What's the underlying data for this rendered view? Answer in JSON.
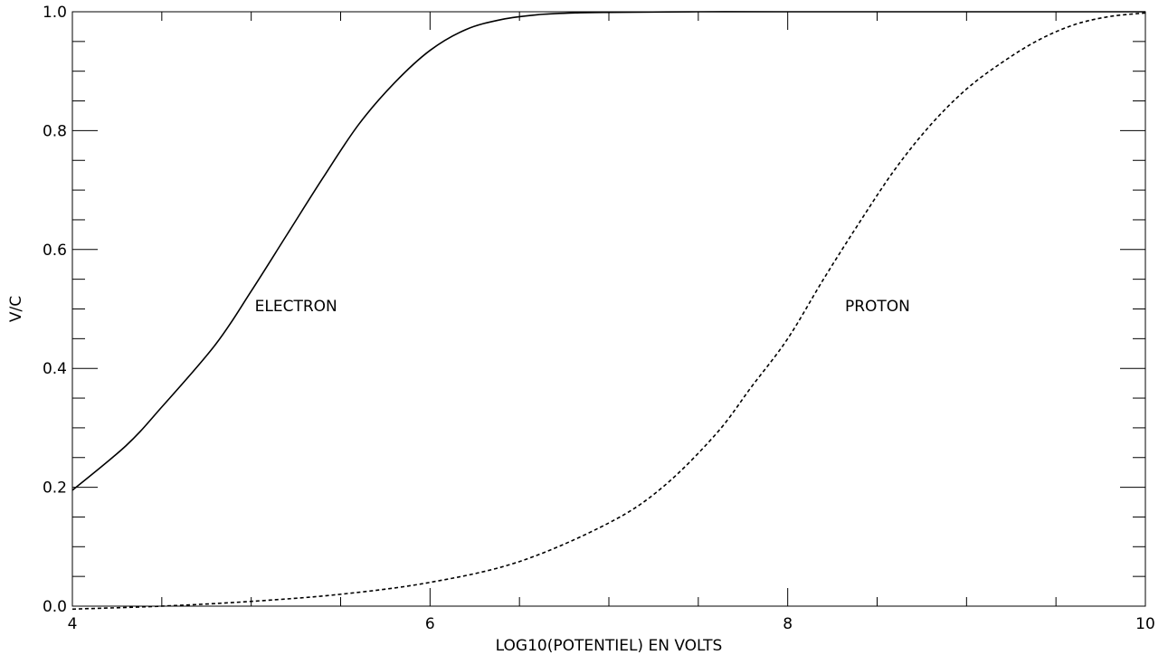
{
  "chart_data": {
    "type": "line",
    "title": "",
    "xlabel": "LOG10(POTENTIEL) EN VOLTS",
    "ylabel": "V/C",
    "xlim": [
      4,
      10
    ],
    "ylim": [
      0,
      1.0
    ],
    "x_major_ticks": [
      4,
      6,
      8,
      10
    ],
    "x_tick_labels": [
      "4",
      "6",
      "8",
      "10"
    ],
    "x_minor_step": 0.5,
    "y_major_ticks": [
      0,
      0.2,
      0.4,
      0.6,
      0.8,
      1.0
    ],
    "y_tick_labels": [
      "0.0",
      "0.2",
      "0.4",
      "0.6",
      "0.8",
      "1.0"
    ],
    "y_minor_step": 0.05,
    "grid": false,
    "line_color": "#000000",
    "series": [
      {
        "name": "ELECTRON",
        "line_style": "solid",
        "x": [
          4.0,
          4.3,
          4.5,
          4.8,
          5.0,
          5.2,
          5.4,
          5.6,
          5.8,
          6.0,
          6.2,
          6.4,
          6.6,
          6.8,
          7.0,
          7.5,
          8.0,
          9.0,
          10.0
        ],
        "y": [
          0.195,
          0.27,
          0.335,
          0.44,
          0.53,
          0.625,
          0.72,
          0.81,
          0.88,
          0.935,
          0.97,
          0.987,
          0.995,
          0.998,
          0.999,
          1.0,
          1.0,
          1.0,
          1.0
        ]
      },
      {
        "name": "PROTON",
        "line_style": "dashed",
        "x": [
          4.0,
          4.5,
          5.0,
          5.5,
          6.0,
          6.5,
          7.0,
          7.3,
          7.6,
          7.8,
          8.0,
          8.2,
          8.4,
          8.6,
          8.8,
          9.0,
          9.2,
          9.4,
          9.6,
          9.8,
          10.0
        ],
        "y": [
          -0.005,
          0.0,
          0.008,
          0.02,
          0.04,
          0.075,
          0.14,
          0.2,
          0.29,
          0.37,
          0.45,
          0.55,
          0.645,
          0.735,
          0.81,
          0.87,
          0.915,
          0.952,
          0.978,
          0.992,
          0.998
        ]
      }
    ],
    "annotations": [
      {
        "text": "ELECTRON",
        "x": 5.0,
        "y": 0.505
      },
      {
        "text": "PROTON",
        "x": 8.3,
        "y": 0.505
      }
    ]
  }
}
